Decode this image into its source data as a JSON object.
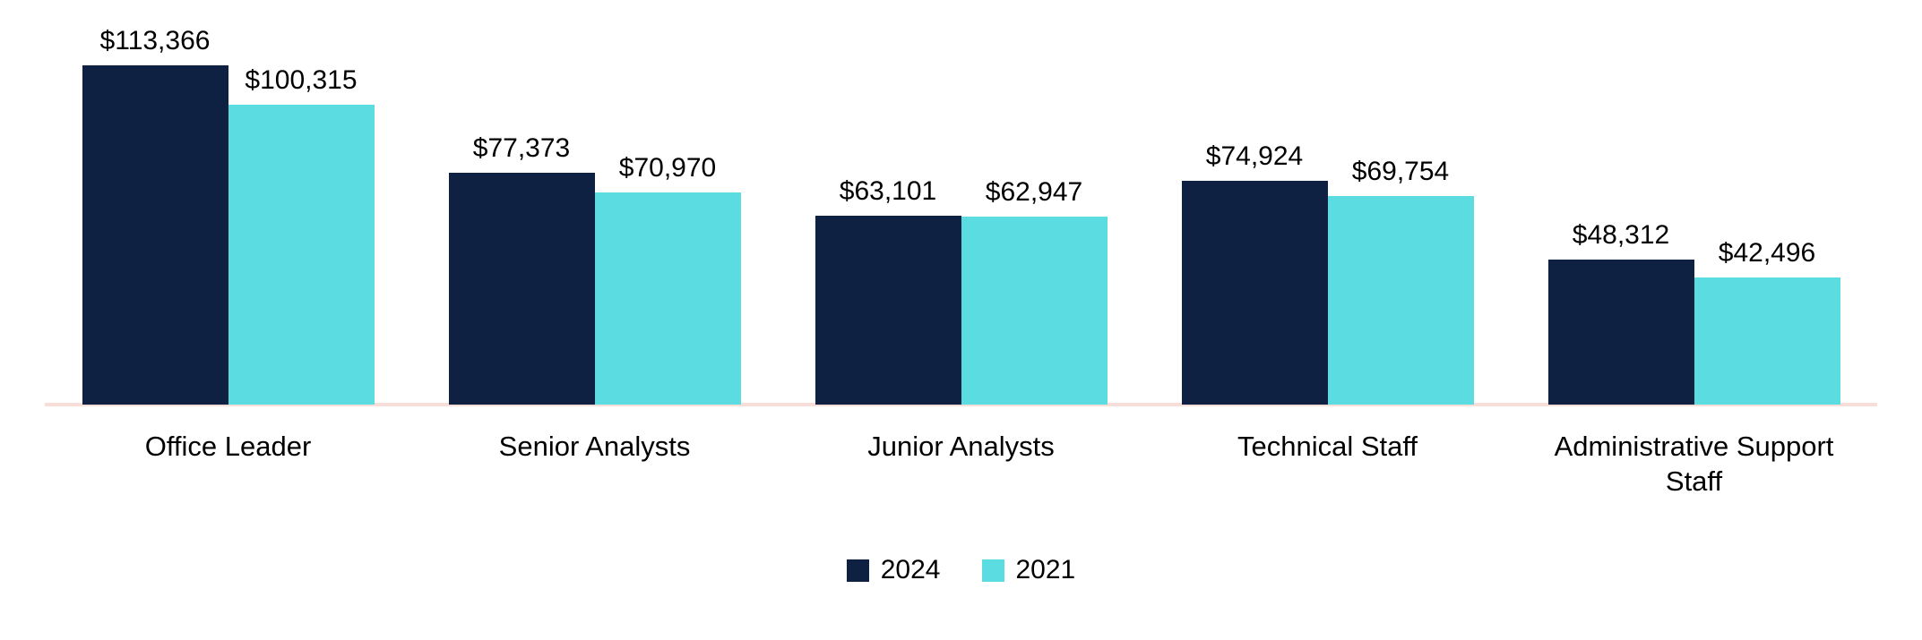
{
  "chart_data": {
    "type": "bar",
    "title": "",
    "xlabel": "",
    "ylabel": "",
    "ylim": [
      0,
      120000
    ],
    "grid": false,
    "data_labels": true,
    "legend_position": "bottom",
    "axis_line_color": "#f8ded8",
    "background_color": "#ffffff",
    "label_color": "#000000",
    "categories": [
      "Office Leader",
      "Senior Analysts",
      "Junior Analysts",
      "Technical Staff",
      "Administrative Support Staff"
    ],
    "series": [
      {
        "name": "2024",
        "color": "#0f2142",
        "values": [
          113366,
          77373,
          63101,
          74924,
          48312
        ],
        "labels": [
          "$113,366",
          "$77,373",
          "$63,101",
          "$74,924",
          "$48,312"
        ]
      },
      {
        "name": "2021",
        "color": "#5adce0",
        "values": [
          100315,
          70970,
          62947,
          69754,
          42496
        ],
        "labels": [
          "$100,315",
          "$70,970",
          "$62,947",
          "$69,754",
          "$42,496"
        ]
      }
    ]
  }
}
